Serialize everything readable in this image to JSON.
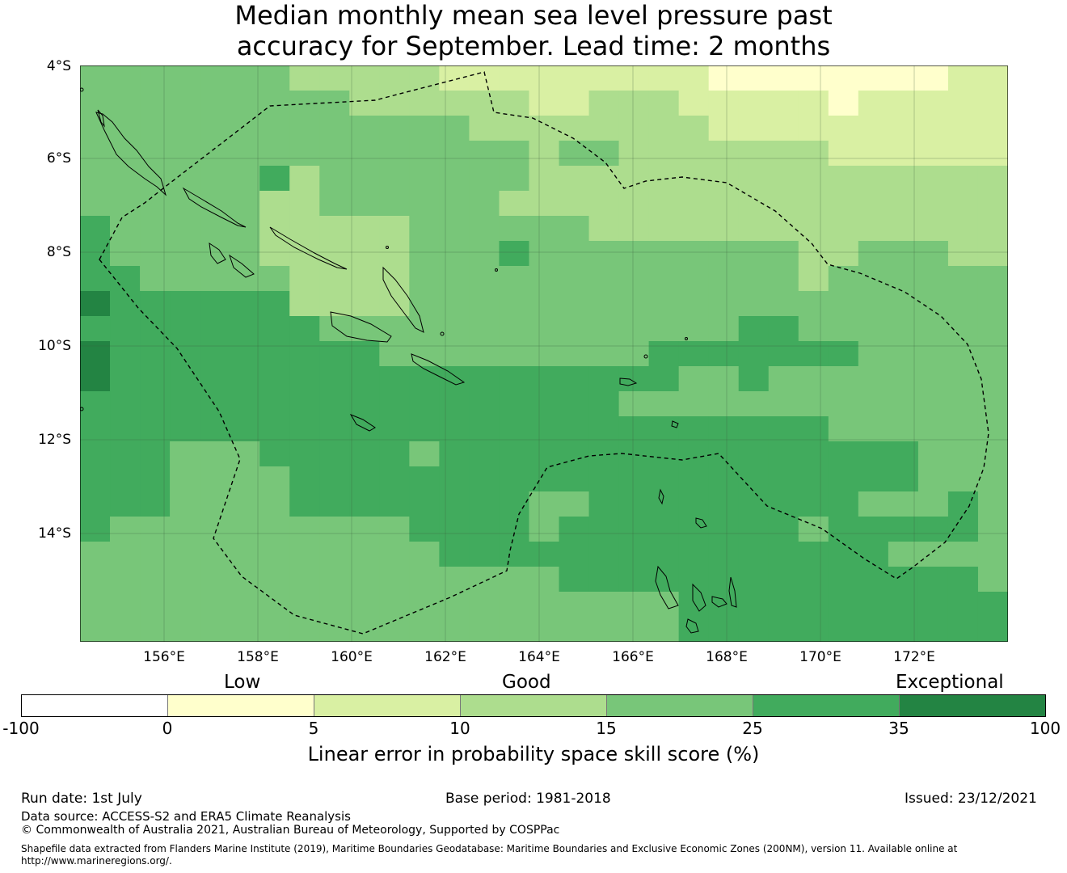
{
  "title_line1": "Median monthly mean sea level pressure past",
  "title_line2": "accuracy for September. Lead time: 2 months",
  "lat_labels": [
    "4°S",
    "6°S",
    "8°S",
    "10°S",
    "12°S",
    "14°S"
  ],
  "lon_labels": [
    "156°E",
    "158°E",
    "160°E",
    "162°E",
    "164°E",
    "166°E",
    "168°E",
    "170°E",
    "172°E"
  ],
  "colorbar": {
    "categories": [
      "Low",
      "Good",
      "Exceptional"
    ],
    "ticks": [
      "-100",
      "0",
      "5",
      "10",
      "15",
      "25",
      "35",
      "100"
    ],
    "colors": [
      "#ffffff",
      "#ffffcc",
      "#d9f0a3",
      "#addd8e",
      "#78c679",
      "#41ab5d",
      "#238443"
    ],
    "label": "Linear error in probability space skill score (%)"
  },
  "footer": {
    "run_date": "Run date: 1st July",
    "base_period": "Base period: 1981-2018",
    "issued": "Issued: 23/12/2021",
    "data_source": "Data source: ACCESS-S2 and ERA5 Climate Reanalysis",
    "copyright": "© Commonwealth of Australia 2021, Australian Bureau of Meteorology, Supported by COSPPac",
    "shapefile": "Shapefile data extracted from Flanders Marine Institute (2019), Maritime Boundaries Geodatabase: Maritime Boundaries and Exclusive Economic Zones (200NM), version 11. Available online at http://www.marineregions.org/."
  },
  "chart_data": {
    "type": "heatmap",
    "title": "Median monthly mean sea level pressure past accuracy for September. Lead time: 2 months",
    "x_range_deg_east": [
      154.2,
      174.0
    ],
    "y_range_deg_south": [
      4.0,
      16.3
    ],
    "cell_size_deg": 0.83,
    "category_codes": {
      "2": "5 to 10",
      "3": "10 to 15",
      "4": "15 to 25",
      "5": "25 to 35",
      "6": "35 to 100"
    },
    "grid_rows": [
      "4444444333332222222221111111122",
      "4444444443333332233322222122222",
      "4444444444444333333332222222222",
      "4444444444444443443333333222222",
      "4444445344444443333333333333333",
      "4444443344444433333333333333333",
      "5444443333344444433333333333333",
      "5444443333344454444444443344433",
      "5544444333344444444444443444444",
      "6555555333344444444444444444444",
      "5555555544444444444444554444444",
      "6555555555444444444555555544444",
      "6555555555555555555544544444444",
      "5555555555555555554444444444444",
      "5555555555555555555555555444444",
      "5554445555545555555555555555444",
      "5554444555555555555555555555444",
      "5554444555555554455555555544454",
      "5444444444455554555555554555554",
      "4444444444445555555555555554444",
      "4444444444444444555555555555554",
      "4444444444444444444455555555555",
      "4444444444444444444455555555555"
    ]
  }
}
